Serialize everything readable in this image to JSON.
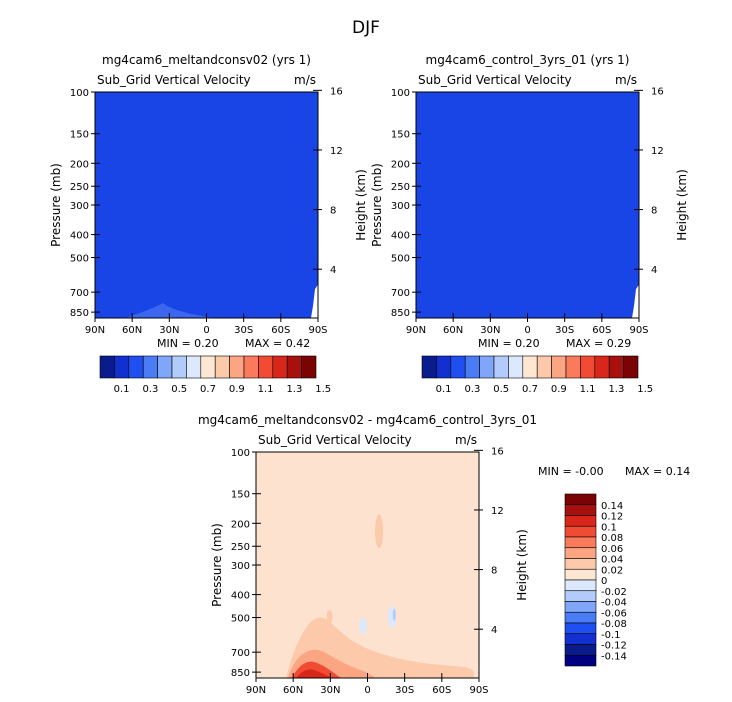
{
  "figure_title": "DJF",
  "chart_data": [
    {
      "type": "heatmap",
      "title": "mg4cam6_meltandconsv02 (yrs 1)",
      "variable": "Sub_Grid Vertical Velocity",
      "units": "m/s",
      "xlabel": "",
      "ylabel": "Pressure (mb)",
      "y2label": "Height (km)",
      "x_ticks": [
        "90N",
        "60N",
        "30N",
        "0",
        "30S",
        "60S",
        "90S"
      ],
      "y_ticks": [
        100,
        150,
        200,
        250,
        300,
        400,
        500,
        700,
        850
      ],
      "y2_ticks": [
        4,
        8,
        12,
        16
      ],
      "min_label": "MIN = 0.20",
      "max_label": "MAX = 0.42",
      "min": 0.2,
      "max": 0.42,
      "dominant_level": "0.2-0.3",
      "field_color": "#1a45e6"
    },
    {
      "type": "heatmap",
      "title": "mg4cam6_control_3yrs_01 (yrs 1)",
      "variable": "Sub_Grid Vertical Velocity",
      "units": "m/s",
      "xlabel": "",
      "ylabel": "Pressure (mb)",
      "y2label": "Height (km)",
      "x_ticks": [
        "90N",
        "60N",
        "30N",
        "0",
        "30S",
        "60S",
        "90S"
      ],
      "y_ticks": [
        100,
        150,
        200,
        250,
        300,
        400,
        500,
        700,
        850
      ],
      "y2_ticks": [
        4,
        8,
        12,
        16
      ],
      "min_label": "MIN = 0.20",
      "max_label": "MAX = 0.29",
      "min": 0.2,
      "max": 0.29,
      "dominant_level": "0.2-0.3",
      "field_color": "#1a45e6"
    },
    {
      "type": "heatmap",
      "title": "mg4cam6_meltandconsv02 - mg4cam6_control_3yrs_01",
      "variable": "Sub_Grid Vertical Velocity",
      "units": "m/s",
      "xlabel": "",
      "ylabel": "Pressure (mb)",
      "y2label": "Height (km)",
      "x_ticks": [
        "90N",
        "60N",
        "30N",
        "0",
        "30S",
        "60S",
        "90S"
      ],
      "y_ticks": [
        100,
        150,
        200,
        250,
        300,
        400,
        500,
        700,
        850
      ],
      "y2_ticks": [
        4,
        8,
        12,
        16
      ],
      "min_label": "MIN = -0.00",
      "max_label": "MAX = 0.14",
      "min": -0.0,
      "max": 0.14,
      "dominant_level": "0-0.02",
      "field_color": "#fde3cf"
    }
  ],
  "colorbar_top": {
    "labels": [
      "0.1",
      "0.3",
      "0.5",
      "0.7",
      "0.9",
      "1.1",
      "1.3",
      "1.5"
    ],
    "colors": [
      "#0a1c8c",
      "#1230d0",
      "#1f4ff0",
      "#4a7df5",
      "#7fa6f8",
      "#b2cbfb",
      "#dbe8fd",
      "#fde6d2",
      "#fcc9aa",
      "#fba583",
      "#f97b5c",
      "#f24b34",
      "#d9261a",
      "#a8100e",
      "#7a0404"
    ]
  },
  "colorbar_diff": {
    "labels": [
      "0.14",
      "0.12",
      "0.1",
      "0.08",
      "0.06",
      "0.04",
      "0.02",
      "0",
      "-0.02",
      "-0.04",
      "-0.06",
      "-0.08",
      "-0.1",
      "-0.12",
      "-0.14"
    ],
    "colors": [
      "#7a0404",
      "#a8100e",
      "#d9261a",
      "#f24b34",
      "#f97b5c",
      "#fba583",
      "#fcc9aa",
      "#fde6d2",
      "#dbe8fd",
      "#b2cbfb",
      "#7fa6f8",
      "#4a7df5",
      "#1f4ff0",
      "#1230d0",
      "#0a1c8c",
      "#000080"
    ]
  }
}
